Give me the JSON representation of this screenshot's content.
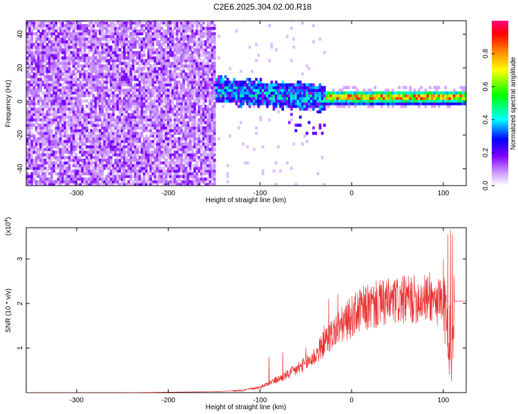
{
  "title": "C2E6.2025.304.02.00.R18",
  "chart_data": [
    {
      "type": "heatmap",
      "xlabel": "Height of straight line (km)",
      "ylabel": "Frequency (Hz)",
      "xlim": [
        -355,
        125
      ],
      "ylim": [
        -50,
        48
      ],
      "xticks": [
        -300,
        -200,
        -100,
        0,
        100
      ],
      "yticks": [
        -40,
        -20,
        0,
        20,
        40
      ],
      "colorbar": {
        "label": "Normalized spectral amplitude",
        "range": [
          0,
          1
        ],
        "ticks": [
          "0.0",
          "0.2",
          "0.4",
          "0.6",
          "0.8"
        ],
        "tick_values": [
          0,
          0.2,
          0.4,
          0.6,
          0.8
        ],
        "colors": [
          "#ffffff",
          "#cc99ff",
          "#8000ff",
          "#0000ff",
          "#00ffff",
          "#00ff00",
          "#ffff00",
          "#ff8000",
          "#ff0000",
          "#ff0080"
        ]
      },
      "regions": [
        {
          "x_range": [
            -355,
            -150
          ],
          "freq_range": [
            -50,
            48
          ],
          "amplitude": "low, scattered noise 0.0-0.25"
        },
        {
          "x_range": [
            -150,
            -25
          ],
          "freq_range": [
            -15,
            15
          ],
          "amplitude": "0.2-0.55"
        },
        {
          "x_range": [
            -25,
            125
          ],
          "freq_range": [
            0,
            5
          ],
          "amplitude": "0.5-0.95, peak ~1.5 Hz"
        }
      ]
    },
    {
      "type": "line",
      "xlabel": "Height of straight line (km)",
      "ylabel": "SNR (10 * v/v)",
      "y_multiplier": "(x10⁴)",
      "y_multiplier_base": "(x10",
      "y_multiplier_exp": "4",
      "y_multiplier_close": ")",
      "xlim": [
        -355,
        125
      ],
      "ylim": [
        0,
        3.7
      ],
      "xticks": [
        -300,
        -200,
        -100,
        0,
        100
      ],
      "yticks": [
        1,
        2,
        3
      ],
      "color": "#e83030",
      "series": [
        {
          "x": [
            -355,
            -300,
            -250,
            -200,
            -150,
            -120,
            -100,
            -90,
            -80,
            -70,
            -60,
            -50,
            -40,
            -30,
            -20,
            -10,
            0,
            10,
            20,
            30,
            40,
            50,
            60,
            70,
            80,
            90,
            95,
            100,
            104,
            108,
            110,
            112,
            120,
            125
          ],
          "y": [
            0.0,
            0.0,
            0.0,
            0.01,
            0.02,
            0.05,
            0.12,
            0.22,
            0.3,
            0.4,
            0.52,
            0.65,
            0.82,
            1.1,
            1.35,
            1.52,
            1.7,
            1.85,
            1.92,
            1.98,
            2.02,
            2.05,
            2.08,
            2.1,
            2.12,
            2.1,
            2.0,
            1.7,
            1.9,
            0.8,
            1.4,
            2.05,
            2.05,
            2.04
          ],
          "peaks": [
            [
              -90,
              0.8
            ],
            [
              -75,
              0.9
            ],
            [
              -50,
              1.0
            ],
            [
              -30,
              1.5
            ],
            [
              -25,
              2.1
            ],
            [
              -15,
              2.2
            ],
            [
              55,
              2.2
            ],
            [
              85,
              2.7
            ],
            [
              100,
              3.0
            ],
            [
              105,
              3.55
            ],
            [
              108,
              3.65
            ],
            [
              110,
              3.55
            ]
          ]
        }
      ]
    }
  ]
}
